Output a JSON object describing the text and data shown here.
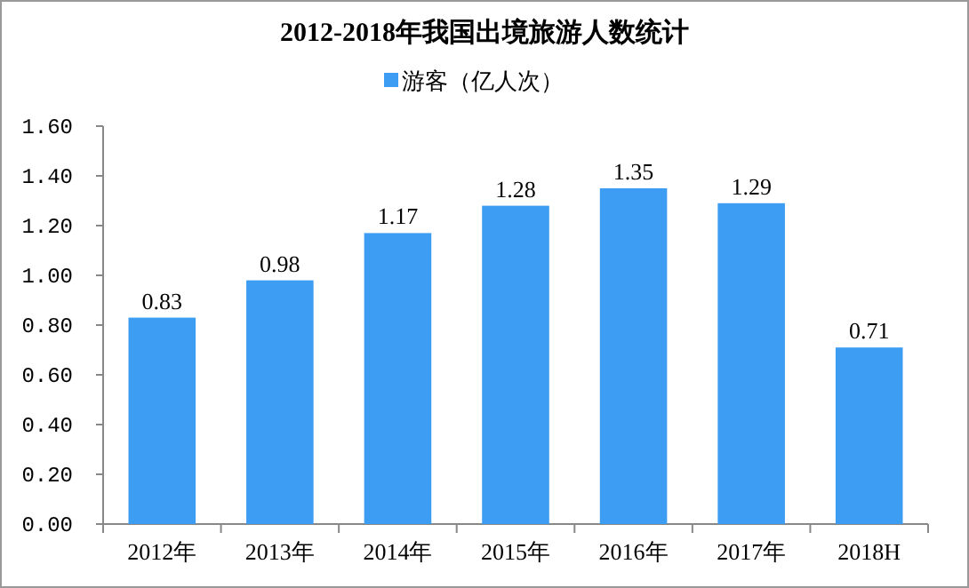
{
  "chart_data": {
    "type": "bar",
    "title": "2012-2018年我国出境旅游人数统计",
    "categories": [
      "2012年",
      "2013年",
      "2014年",
      "2015年",
      "2016年",
      "2017年",
      "2018H"
    ],
    "series": [
      {
        "name": "游客（亿人次）",
        "color": "#3d9df2",
        "values": [
          0.83,
          0.98,
          1.17,
          1.28,
          1.35,
          1.29,
          0.71
        ]
      }
    ],
    "ylim": [
      0,
      1.6
    ],
    "yticks": [
      {
        "value": 0,
        "label": "0.00"
      },
      {
        "value": 0.2,
        "label": "0.20"
      },
      {
        "value": 0.4,
        "label": "0.40"
      },
      {
        "value": 0.6,
        "label": "0.60"
      },
      {
        "value": 0.8,
        "label": "0.80"
      },
      {
        "value": 1.0,
        "label": "1.00"
      },
      {
        "value": 1.2,
        "label": "1.20"
      },
      {
        "value": 1.4,
        "label": "1.40"
      },
      {
        "value": 1.6,
        "label": "1.60"
      }
    ],
    "data_labels": true,
    "legend": "top",
    "grid": false
  }
}
